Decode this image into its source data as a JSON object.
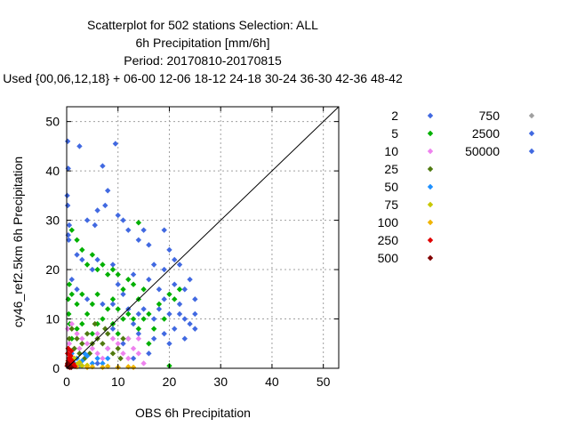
{
  "chart_data": {
    "type": "scatter",
    "title": [
      "Scatterplot for  502 stations Selection: ALL",
      "6h Precipitation [mm/6h]",
      "Period: 20170810-20170815",
      "Used {00,06,12,18} + 06-00 12-06 18-12 24-18 30-24 36-30 42-36 48-42"
    ],
    "xlabel": "OBS 6h Precipitation",
    "ylabel": "cy46_ref2.5km 6h Precipitation",
    "xlim": [
      0,
      53
    ],
    "ylim": [
      0,
      53
    ],
    "xticks": [
      0,
      10,
      20,
      30,
      40,
      50
    ],
    "yticks": [
      0,
      10,
      20,
      30,
      40,
      50
    ],
    "grid": true,
    "diagonal": true,
    "legend_placement": "right",
    "legend_title": "",
    "legend": [
      {
        "label": "2",
        "color": "#4169e1"
      },
      {
        "label": "5",
        "color": "#00b000"
      },
      {
        "label": "10",
        "color": "#ee82ee"
      },
      {
        "label": "25",
        "color": "#4f7a10"
      },
      {
        "label": "50",
        "color": "#1e90ff"
      },
      {
        "label": "75",
        "color": "#c8c800"
      },
      {
        "label": "100",
        "color": "#f0b400"
      },
      {
        "label": "250",
        "color": "#e00000"
      },
      {
        "label": "500",
        "color": "#800000"
      },
      {
        "label": "750",
        "color": "#a0a0a0"
      },
      {
        "label": "2500",
        "color": "#4169e1"
      },
      {
        "label": "50000",
        "color": "#4169e1"
      }
    ],
    "series": [
      {
        "name": "2",
        "color": "#4169e1",
        "points": [
          [
            0.2,
            46
          ],
          [
            0.3,
            40.5
          ],
          [
            0.1,
            35
          ],
          [
            0.2,
            33
          ],
          [
            0.5,
            29
          ],
          [
            0.3,
            27
          ],
          [
            0.4,
            26
          ],
          [
            2.5,
            45
          ],
          [
            9.5,
            45.5
          ],
          [
            7,
            41
          ],
          [
            8,
            36
          ],
          [
            7.5,
            33
          ],
          [
            6,
            32
          ],
          [
            10,
            31
          ],
          [
            11,
            30
          ],
          [
            4,
            30
          ],
          [
            5.5,
            29
          ],
          [
            12,
            28
          ],
          [
            15,
            28
          ],
          [
            19,
            28
          ],
          [
            14,
            26
          ],
          [
            16,
            25
          ],
          [
            20,
            24
          ],
          [
            2,
            23
          ],
          [
            3,
            22
          ],
          [
            6,
            22
          ],
          [
            9,
            21
          ],
          [
            17,
            21
          ],
          [
            21,
            22
          ],
          [
            22,
            21
          ],
          [
            19,
            20
          ],
          [
            13,
            19
          ],
          [
            1,
            18
          ],
          [
            24,
            18
          ],
          [
            21,
            17
          ],
          [
            23,
            16
          ],
          [
            18,
            16
          ],
          [
            11,
            15
          ],
          [
            4,
            14
          ],
          [
            7,
            13
          ],
          [
            25,
            14
          ],
          [
            19,
            14
          ],
          [
            22,
            13
          ],
          [
            15,
            12
          ],
          [
            12,
            12
          ],
          [
            25,
            11
          ],
          [
            20,
            11
          ],
          [
            23,
            10
          ],
          [
            17,
            10
          ],
          [
            13,
            9
          ],
          [
            9,
            8
          ],
          [
            25,
            8
          ],
          [
            21,
            8
          ],
          [
            19,
            7
          ],
          [
            14,
            7
          ],
          [
            23,
            6
          ],
          [
            17,
            6
          ],
          [
            11,
            5
          ],
          [
            8,
            4
          ],
          [
            16,
            3
          ],
          [
            13,
            2
          ],
          [
            6,
            1
          ],
          [
            3,
            0.5
          ],
          [
            24,
            9
          ],
          [
            20,
            5
          ],
          [
            18,
            12
          ],
          [
            10,
            17
          ],
          [
            5,
            20
          ],
          [
            2,
            16
          ],
          [
            16,
            18
          ],
          [
            22,
            11
          ],
          [
            14,
            11
          ],
          [
            9,
            13
          ]
        ]
      },
      {
        "name": "5",
        "color": "#00b000",
        "points": [
          [
            14,
            29.5
          ],
          [
            1,
            28
          ],
          [
            2,
            26
          ],
          [
            3,
            24
          ],
          [
            5,
            23
          ],
          [
            4,
            21
          ],
          [
            7,
            21
          ],
          [
            6,
            20
          ],
          [
            9,
            20
          ],
          [
            8,
            19
          ],
          [
            10,
            19
          ],
          [
            12,
            18
          ],
          [
            13,
            17
          ],
          [
            11,
            16
          ],
          [
            15,
            16
          ],
          [
            1,
            15
          ],
          [
            3,
            15
          ],
          [
            6,
            15
          ],
          [
            14,
            14
          ],
          [
            2,
            13
          ],
          [
            5,
            13
          ],
          [
            9,
            14
          ],
          [
            8,
            12
          ],
          [
            10,
            12
          ],
          [
            12,
            11
          ],
          [
            16,
            11
          ],
          [
            4,
            11
          ],
          [
            7,
            10
          ],
          [
            11,
            10
          ],
          [
            13,
            10
          ],
          [
            15,
            10
          ],
          [
            3,
            9
          ],
          [
            6,
            9
          ],
          [
            9,
            9
          ],
          [
            17,
            8
          ],
          [
            2,
            8
          ],
          [
            14,
            8
          ],
          [
            5,
            7
          ],
          [
            10,
            7
          ],
          [
            12,
            6
          ],
          [
            1,
            6
          ],
          [
            16,
            5
          ],
          [
            20,
            0.5
          ],
          [
            18,
            13
          ],
          [
            20,
            15
          ],
          [
            22,
            16
          ],
          [
            19,
            10
          ],
          [
            21,
            14
          ],
          [
            0.5,
            17
          ],
          [
            0.3,
            14
          ],
          [
            0.4,
            11
          ],
          [
            0.6,
            9
          ]
        ]
      },
      {
        "name": "10",
        "color": "#ee82ee",
        "points": [
          [
            1,
            9
          ],
          [
            2,
            7
          ],
          [
            3,
            6
          ],
          [
            4,
            5
          ],
          [
            5,
            4
          ],
          [
            6,
            3
          ],
          [
            7,
            2
          ],
          [
            8,
            4
          ],
          [
            9,
            6
          ],
          [
            10,
            5
          ],
          [
            11,
            3
          ],
          [
            12,
            2
          ],
          [
            13,
            4
          ],
          [
            14,
            3
          ],
          [
            15,
            1
          ],
          [
            0.5,
            5
          ],
          [
            0.3,
            3
          ],
          [
            1.5,
            2
          ],
          [
            2.5,
            4
          ],
          [
            6,
            7
          ],
          [
            12,
            6
          ],
          [
            14,
            6
          ],
          [
            0.2,
            8
          ]
        ]
      },
      {
        "name": "25",
        "color": "#4f7a10",
        "points": [
          [
            1,
            8
          ],
          [
            2,
            6
          ],
          [
            3,
            5
          ],
          [
            4,
            7
          ],
          [
            5,
            5
          ],
          [
            6,
            6
          ],
          [
            7,
            5
          ],
          [
            8,
            7
          ],
          [
            9,
            3
          ],
          [
            10,
            4
          ],
          [
            11,
            6
          ],
          [
            1.5,
            4
          ],
          [
            2.5,
            3
          ],
          [
            0.5,
            6
          ],
          [
            3.5,
            2
          ],
          [
            4.5,
            3
          ],
          [
            7.5,
            8
          ],
          [
            5.5,
            9
          ],
          [
            10.5,
            2
          ],
          [
            0.3,
            4
          ]
        ]
      },
      {
        "name": "50",
        "color": "#1e90ff",
        "points": [
          [
            1,
            3
          ],
          [
            2,
            2
          ],
          [
            3,
            1.5
          ],
          [
            4,
            2.5
          ],
          [
            5,
            1
          ],
          [
            6,
            2
          ],
          [
            1.5,
            1
          ],
          [
            0.5,
            2
          ],
          [
            2.5,
            0.5
          ],
          [
            3.5,
            3
          ],
          [
            7,
            1
          ],
          [
            8,
            2
          ]
        ]
      },
      {
        "name": "75",
        "color": "#c8c800",
        "points": [
          [
            0.5,
            1.5
          ],
          [
            1,
            1
          ],
          [
            2,
            0.8
          ],
          [
            3,
            0.5
          ],
          [
            1.5,
            2
          ],
          [
            2.5,
            1.2
          ],
          [
            4,
            0.6
          ]
        ]
      },
      {
        "name": "100",
        "color": "#f0b400",
        "points": [
          [
            0.3,
            1.2
          ],
          [
            0.8,
            0.8
          ],
          [
            1.2,
            0.5
          ],
          [
            2,
            0.3
          ],
          [
            5,
            0.3
          ],
          [
            7,
            0.2
          ],
          [
            10,
            0.2
          ],
          [
            12,
            0.3
          ],
          [
            13,
            0.2
          ],
          [
            4,
            0.2
          ],
          [
            8,
            0.4
          ]
        ]
      },
      {
        "name": "250",
        "color": "#e00000",
        "points": [
          [
            0.2,
            3
          ],
          [
            0.4,
            2
          ],
          [
            0.3,
            1.5
          ],
          [
            0.6,
            1
          ],
          [
            0.8,
            2.5
          ],
          [
            1,
            1.6
          ],
          [
            0.2,
            0.8
          ],
          [
            0.5,
            0.4
          ],
          [
            1.3,
            0.9
          ],
          [
            1.6,
            0.4
          ],
          [
            0.9,
            3.5
          ],
          [
            0.3,
            4
          ]
        ]
      },
      {
        "name": "500",
        "color": "#800000",
        "points": [
          [
            0.1,
            0.5
          ],
          [
            0.3,
            0.3
          ],
          [
            0.6,
            0.2
          ],
          [
            0.2,
            1
          ],
          [
            0.9,
            0.2
          ],
          [
            0.4,
            0.7
          ]
        ]
      }
    ]
  }
}
